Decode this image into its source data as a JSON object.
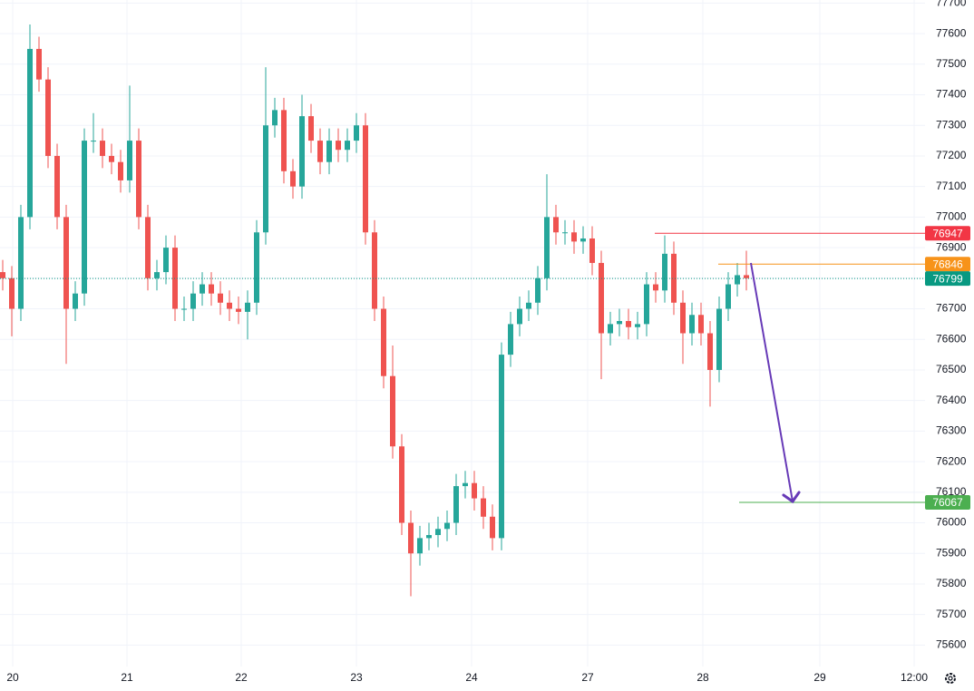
{
  "chart_data": {
    "type": "candlestick",
    "open": [
      76820,
      76800,
      76700,
      77000,
      77550,
      77450,
      77200,
      77000,
      76700,
      76750,
      77250,
      77250,
      77200,
      77180,
      77120,
      77250,
      77000,
      76800,
      76820,
      76900,
      76700,
      76700,
      76750,
      76780,
      76750,
      76720,
      76700,
      76690,
      76720,
      76950,
      77300,
      77350,
      77150,
      77100,
      77330,
      77250,
      77180,
      77250,
      77220,
      77250,
      77300,
      76950,
      76700,
      76480,
      76250,
      76000,
      75900,
      75950,
      75960,
      75980,
      76000,
      76120,
      76130,
      76080,
      76020,
      75950,
      76550,
      76650,
      76700,
      76720,
      76800,
      77000,
      76950,
      76950,
      76920,
      76930,
      76850,
      76620,
      76650,
      76660,
      76640,
      76650,
      76780,
      76760,
      76880,
      76720,
      76620,
      76680,
      76620,
      76500,
      76700,
      76780,
      76810
    ],
    "high": [
      76860,
      76840,
      77040,
      77630,
      77590,
      77490,
      77240,
      77040,
      76790,
      77290,
      77340,
      77290,
      77240,
      77220,
      77430,
      77290,
      77040,
      76860,
      76940,
      76940,
      76740,
      76790,
      76820,
      76820,
      76790,
      76760,
      76740,
      76760,
      76990,
      77490,
      77390,
      77390,
      77190,
      77400,
      77370,
      77290,
      77290,
      77290,
      77290,
      77340,
      77340,
      76990,
      76740,
      76580,
      76290,
      76040,
      75990,
      76000,
      76020,
      76040,
      76160,
      76170,
      76170,
      76120,
      76060,
      76590,
      76690,
      76740,
      76760,
      76840,
      77140,
      77040,
      76990,
      76990,
      76970,
      76970,
      76890,
      76690,
      76700,
      76700,
      76690,
      76820,
      76820,
      76940,
      76920,
      76760,
      76720,
      76720,
      76660,
      76740,
      76820,
      76850,
      76890
    ],
    "low": [
      76760,
      76610,
      76660,
      76960,
      77410,
      77160,
      76960,
      76520,
      76660,
      76710,
      77210,
      77160,
      77140,
      77080,
      77080,
      76960,
      76760,
      76760,
      76780,
      76660,
      76660,
      76660,
      76710,
      76710,
      76680,
      76660,
      76650,
      76600,
      76680,
      76910,
      77260,
      77110,
      77060,
      77060,
      77210,
      77140,
      77140,
      77180,
      77180,
      77210,
      76910,
      76660,
      76440,
      76210,
      75960,
      75760,
      75860,
      75910,
      75920,
      75940,
      75960,
      76080,
      76040,
      75980,
      75910,
      75910,
      76510,
      76610,
      76660,
      76680,
      76760,
      76910,
      76910,
      76880,
      76880,
      76810,
      76470,
      76580,
      76610,
      76600,
      76600,
      76610,
      76720,
      76720,
      76680,
      76520,
      76580,
      76580,
      76380,
      76460,
      76660,
      76740,
      76760
    ],
    "close": [
      76800,
      76700,
      77000,
      77550,
      77450,
      77200,
      77000,
      76700,
      76750,
      77250,
      77250,
      77200,
      77180,
      77120,
      77250,
      77000,
      76800,
      76820,
      76900,
      76700,
      76700,
      76750,
      76780,
      76750,
      76720,
      76700,
      76690,
      76720,
      76950,
      77300,
      77350,
      77150,
      77100,
      77330,
      77250,
      77180,
      77250,
      77220,
      77250,
      77300,
      76950,
      76700,
      76480,
      76250,
      76000,
      75900,
      75950,
      75960,
      75980,
      76000,
      76120,
      76130,
      76080,
      76020,
      75950,
      76550,
      76650,
      76700,
      76720,
      76800,
      77000,
      76950,
      76950,
      76920,
      76930,
      76850,
      76620,
      76650,
      76660,
      76640,
      76650,
      76780,
      76760,
      76880,
      76720,
      76620,
      76680,
      76620,
      76500,
      76700,
      76780,
      76810,
      76800
    ],
    "up_color": "#26a69a",
    "down_color": "#ef5350",
    "ylim": [
      75530,
      77710
    ],
    "yticks": [
      75600,
      75700,
      75800,
      75900,
      76000,
      76100,
      76200,
      76300,
      76400,
      76500,
      76600,
      76700,
      76800,
      76900,
      77000,
      77100,
      77200,
      77300,
      77400,
      77500,
      77600,
      77700
    ],
    "xtick_labels": [
      "20",
      "21",
      "22",
      "23",
      "24",
      "27",
      "28",
      "29",
      "12:00"
    ],
    "grid": true,
    "levels": [
      {
        "value": 76947,
        "color": "#f23645"
      },
      {
        "value": 76846,
        "color": "#f7931a"
      },
      {
        "value": 76799,
        "color": "#089981"
      },
      {
        "value": 76067,
        "color": "#4caf50"
      }
    ]
  }
}
